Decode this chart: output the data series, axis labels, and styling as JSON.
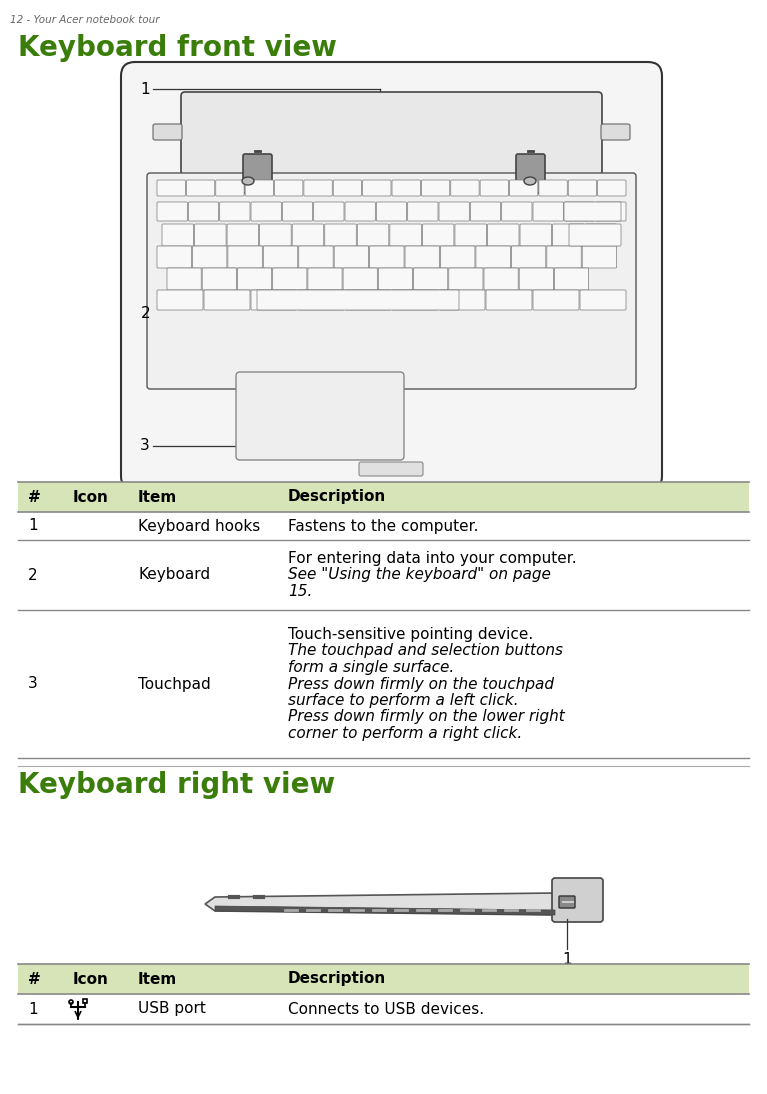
{
  "page_header": "12 - Your Acer notebook tour",
  "section1_title": "Keyboard front view",
  "section2_title": "Keyboard right view",
  "green_color": "#3a7d0a",
  "header_bg": "#d6e4b8",
  "table1_rows": [
    {
      "num": "1",
      "icon": "",
      "item": "Keyboard hooks",
      "desc_lines": [
        {
          "text": "Fastens to the computer.",
          "italic": false
        }
      ]
    },
    {
      "num": "2",
      "icon": "",
      "item": "Keyboard",
      "desc_lines": [
        {
          "text": "For entering data into your computer.",
          "italic": false
        },
        {
          "text": "See \"Using the keyboard\" on page",
          "italic": true
        },
        {
          "text": "15.",
          "italic": true
        }
      ]
    },
    {
      "num": "3",
      "icon": "",
      "item": "Touchpad",
      "desc_lines": [
        {
          "text": "Touch-sensitive pointing device.",
          "italic": false
        },
        {
          "text": "The touchpad and selection buttons",
          "italic": true
        },
        {
          "text": "form a single surface.",
          "italic": true
        },
        {
          "text": "Press down firmly on the touchpad",
          "italic": true
        },
        {
          "text": "surface to perform a left click.",
          "italic": true
        },
        {
          "text": "Press down firmly on the lower right",
          "italic": true
        },
        {
          "text": "corner to perform a right click.",
          "italic": true
        }
      ]
    }
  ],
  "table2_rows": [
    {
      "num": "1",
      "icon": "usb",
      "item": "USB port",
      "desc_lines": [
        {
          "text": "Connects to USB devices.",
          "italic": false
        }
      ]
    }
  ],
  "background_color": "#ffffff"
}
